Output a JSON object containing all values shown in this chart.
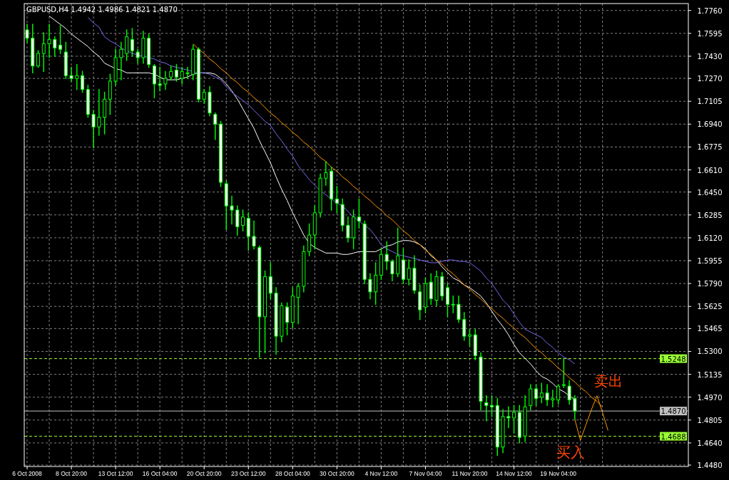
{
  "chart_data": {
    "type": "candlestick",
    "title": "GBPUSD,H4 1.4942 1.4986 1.4821 1.4870",
    "color": "#00ff00",
    "grid": true,
    "categories": [
      "6 Oct 2008",
      null,
      null,
      null,
      null,
      null,
      null,
      null,
      "8 Oct 20:00",
      null,
      null,
      null,
      null,
      null,
      null,
      null,
      "13 Oct 12:00",
      null,
      null,
      null,
      null,
      null,
      null,
      null,
      "16 Oct 04:00",
      null,
      null,
      null,
      null,
      null,
      null,
      null,
      "20 Oct 20:00",
      null,
      null,
      null,
      null,
      null,
      null,
      null,
      "23 Oct 12:00",
      null,
      null,
      null,
      null,
      null,
      null,
      null,
      "28 Oct 04:00",
      null,
      null,
      null,
      null,
      null,
      null,
      null,
      "30 Oct 20:00",
      null,
      null,
      null,
      null,
      null,
      null,
      null,
      "4 Nov 12:00",
      null,
      null,
      null,
      null,
      null,
      null,
      null,
      "7 Nov 04:00",
      null,
      null,
      null,
      null,
      null,
      null,
      null,
      "11 Nov 20:00",
      null,
      null,
      null,
      null,
      null,
      null,
      null,
      "14 Nov 12:00",
      null,
      null,
      null,
      null,
      null,
      null,
      null,
      "19 Nov 04:00",
      null,
      null,
      null,
      null,
      null,
      null,
      null,
      null,
      null
    ],
    "ohlc": [
      [
        1.762,
        1.766,
        1.753,
        1.756
      ],
      [
        1.756,
        1.766,
        1.731,
        1.736
      ],
      [
        1.736,
        1.747,
        1.735,
        1.745
      ],
      [
        1.745,
        1.76,
        1.732,
        1.752
      ],
      [
        1.752,
        1.766,
        1.742,
        1.755
      ],
      [
        1.755,
        1.757,
        1.743,
        1.749
      ],
      [
        1.751,
        1.765,
        1.745,
        1.748
      ],
      [
        1.746,
        1.753,
        1.727,
        1.729
      ],
      [
        1.729,
        1.735,
        1.725,
        1.727
      ],
      [
        1.727,
        1.737,
        1.719,
        1.729
      ],
      [
        1.729,
        1.732,
        1.717,
        1.719
      ],
      [
        1.719,
        1.722,
        1.699,
        1.701
      ],
      [
        1.701,
        1.704,
        1.677,
        1.692
      ],
      [
        1.692,
        1.719,
        1.686,
        1.699
      ],
      [
        1.699,
        1.717,
        1.687,
        1.712
      ],
      [
        1.712,
        1.73,
        1.701,
        1.725
      ],
      [
        1.725,
        1.748,
        1.722,
        1.742
      ],
      [
        1.742,
        1.753,
        1.726,
        1.748
      ],
      [
        1.745,
        1.762,
        1.74,
        1.757
      ],
      [
        1.755,
        1.763,
        1.743,
        1.747
      ],
      [
        1.746,
        1.748,
        1.738,
        1.742
      ],
      [
        1.742,
        1.761,
        1.738,
        1.756
      ],
      [
        1.756,
        1.759,
        1.735,
        1.737
      ],
      [
        1.736,
        1.737,
        1.713,
        1.723
      ],
      [
        1.723,
        1.735,
        1.718,
        1.722
      ],
      [
        1.723,
        1.732,
        1.719,
        1.727
      ],
      [
        1.728,
        1.736,
        1.726,
        1.732
      ],
      [
        1.733,
        1.737,
        1.725,
        1.728
      ],
      [
        1.727,
        1.735,
        1.723,
        1.732
      ],
      [
        1.731,
        1.735,
        1.727,
        1.731
      ],
      [
        1.73,
        1.751,
        1.726,
        1.748
      ],
      [
        1.748,
        1.749,
        1.71,
        1.712
      ],
      [
        1.712,
        1.719,
        1.709,
        1.717
      ],
      [
        1.717,
        1.721,
        1.7,
        1.702
      ],
      [
        1.701,
        1.702,
        1.683,
        1.694
      ],
      [
        1.694,
        1.696,
        1.649,
        1.652
      ],
      [
        1.651,
        1.653,
        1.618,
        1.635
      ],
      [
        1.635,
        1.642,
        1.622,
        1.632
      ],
      [
        1.632,
        1.635,
        1.614,
        1.62
      ],
      [
        1.621,
        1.632,
        1.617,
        1.627
      ],
      [
        1.626,
        1.63,
        1.603,
        1.613
      ],
      [
        1.613,
        1.624,
        1.604,
        1.606
      ],
      [
        1.605,
        1.606,
        1.526,
        1.555
      ],
      [
        1.555,
        1.588,
        1.529,
        1.584
      ],
      [
        1.584,
        1.594,
        1.568,
        1.572
      ],
      [
        1.572,
        1.576,
        1.528,
        1.541
      ],
      [
        1.541,
        1.565,
        1.537,
        1.563
      ],
      [
        1.562,
        1.565,
        1.542,
        1.551
      ],
      [
        1.551,
        1.576,
        1.547,
        1.57
      ],
      [
        1.569,
        1.579,
        1.55,
        1.577
      ],
      [
        1.577,
        1.606,
        1.573,
        1.602
      ],
      [
        1.602,
        1.622,
        1.599,
        1.614
      ],
      [
        1.614,
        1.635,
        1.604,
        1.63
      ],
      [
        1.63,
        1.658,
        1.627,
        1.655
      ],
      [
        1.655,
        1.667,
        1.65,
        1.659
      ],
      [
        1.66,
        1.663,
        1.632,
        1.64
      ],
      [
        1.64,
        1.649,
        1.63,
        1.637
      ],
      [
        1.636,
        1.64,
        1.617,
        1.621
      ],
      [
        1.621,
        1.627,
        1.609,
        1.612
      ],
      [
        1.612,
        1.632,
        1.604,
        1.627
      ],
      [
        1.627,
        1.64,
        1.619,
        1.624
      ],
      [
        1.622,
        1.624,
        1.579,
        1.582
      ],
      [
        1.582,
        1.586,
        1.568,
        1.573
      ],
      [
        1.573,
        1.594,
        1.564,
        1.585
      ],
      [
        1.585,
        1.604,
        1.582,
        1.6
      ],
      [
        1.6,
        1.609,
        1.589,
        1.595
      ],
      [
        1.595,
        1.596,
        1.581,
        1.586
      ],
      [
        1.586,
        1.619,
        1.584,
        1.599
      ],
      [
        1.596,
        1.604,
        1.579,
        1.582
      ],
      [
        1.582,
        1.596,
        1.578,
        1.59
      ],
      [
        1.59,
        1.599,
        1.572,
        1.574
      ],
      [
        1.573,
        1.578,
        1.553,
        1.56
      ],
      [
        1.562,
        1.583,
        1.558,
        1.579
      ],
      [
        1.58,
        1.586,
        1.564,
        1.568
      ],
      [
        1.567,
        1.588,
        1.563,
        1.584
      ],
      [
        1.584,
        1.587,
        1.567,
        1.57
      ],
      [
        1.576,
        1.579,
        1.555,
        1.564
      ],
      [
        1.564,
        1.57,
        1.558,
        1.564
      ],
      [
        1.564,
        1.57,
        1.551,
        1.553
      ],
      [
        1.553,
        1.558,
        1.538,
        1.541
      ],
      [
        1.541,
        1.546,
        1.534,
        1.542
      ],
      [
        1.542,
        1.546,
        1.524,
        1.527
      ],
      [
        1.526,
        1.529,
        1.488,
        1.494
      ],
      [
        1.493,
        1.498,
        1.48,
        1.491
      ],
      [
        1.491,
        1.498,
        1.483,
        1.49
      ],
      [
        1.491,
        1.496,
        1.455,
        1.461
      ],
      [
        1.461,
        1.488,
        1.457,
        1.483
      ],
      [
        1.483,
        1.49,
        1.475,
        1.482
      ],
      [
        1.482,
        1.491,
        1.471,
        1.486
      ],
      [
        1.486,
        1.491,
        1.464,
        1.468
      ],
      [
        1.469,
        1.498,
        1.465,
        1.49
      ],
      [
        1.491,
        1.506,
        1.488,
        1.503
      ],
      [
        1.503,
        1.506,
        1.491,
        1.496
      ],
      [
        1.497,
        1.507,
        1.493,
        1.5
      ],
      [
        1.5,
        1.506,
        1.491,
        1.495
      ],
      [
        1.495,
        1.502,
        1.49,
        1.496
      ],
      [
        1.495,
        1.506,
        1.492,
        1.505
      ],
      [
        1.506,
        1.525,
        1.504,
        1.506
      ],
      [
        1.505,
        1.509,
        1.492,
        1.495
      ],
      [
        1.496,
        1.498,
        1.481,
        1.487
      ],
      null,
      null,
      null,
      null,
      null,
      null
    ],
    "series": [
      {
        "type": "line",
        "color": "#ffffff",
        "values": [
          null,
          null,
          null,
          null,
          1.772,
          1.769,
          1.766,
          1.763,
          1.759,
          1.756,
          1.753,
          1.75,
          1.746,
          1.743,
          1.738,
          1.736,
          1.734,
          1.733,
          1.731,
          1.731,
          1.731,
          1.731,
          1.731,
          1.73,
          1.728,
          1.726,
          1.726,
          1.726,
          1.727,
          1.728,
          1.73,
          1.731,
          1.731,
          1.731,
          1.73,
          1.727,
          1.723,
          1.718,
          1.712,
          1.705,
          1.698,
          1.691,
          1.682,
          1.674,
          1.666,
          1.656,
          1.647,
          1.639,
          1.63,
          1.622,
          1.614,
          1.608,
          1.605,
          1.603,
          1.601,
          1.601,
          1.601,
          1.6,
          1.6,
          1.601,
          1.602,
          1.602,
          1.602,
          1.602,
          1.604,
          1.606,
          1.607,
          1.609,
          1.61,
          1.61,
          1.609,
          1.607,
          1.604,
          1.599,
          1.596,
          1.591,
          1.587,
          1.583,
          1.581,
          1.578,
          1.576,
          1.573,
          1.57,
          1.565,
          1.559,
          1.553,
          1.548,
          1.542,
          1.535,
          1.529,
          1.525,
          1.521,
          1.516,
          1.512,
          1.51,
          1.507,
          1.503,
          1.501,
          1.498,
          1.495,
          null,
          null,
          null,
          null,
          null,
          null
        ]
      },
      {
        "type": "line",
        "color": "#7b68ee",
        "values": [
          null,
          null,
          null,
          null,
          null,
          null,
          null,
          null,
          null,
          null,
          null,
          1.771,
          1.767,
          1.764,
          1.757,
          1.754,
          1.752,
          1.749,
          1.747,
          1.745,
          1.744,
          1.743,
          1.742,
          1.741,
          1.739,
          1.738,
          1.736,
          1.735,
          1.734,
          1.733,
          1.732,
          1.731,
          1.731,
          1.73,
          1.728,
          1.726,
          1.721,
          1.717,
          1.714,
          1.711,
          1.708,
          1.704,
          1.7,
          1.696,
          1.693,
          1.687,
          1.682,
          1.676,
          1.671,
          1.664,
          1.659,
          1.654,
          1.65,
          1.646,
          1.643,
          1.64,
          1.637,
          1.635,
          1.631,
          1.627,
          1.624,
          1.621,
          1.618,
          1.613,
          1.607,
          1.604,
          1.602,
          1.6,
          1.599,
          1.598,
          1.597,
          1.596,
          1.595,
          1.594,
          1.594,
          1.595,
          1.596,
          1.596,
          1.595,
          1.595,
          1.594,
          1.591,
          1.588,
          1.583,
          1.579,
          1.573,
          1.567,
          1.563,
          1.557,
          1.551,
          1.546,
          1.544,
          1.542,
          1.54,
          1.536,
          1.533,
          1.529,
          1.526,
          1.524,
          1.521,
          null,
          null,
          null,
          null,
          null,
          null
        ]
      },
      {
        "type": "line",
        "color": "#ff9900",
        "values": [
          null,
          null,
          null,
          null,
          null,
          null,
          null,
          null,
          null,
          null,
          null,
          null,
          null,
          null,
          null,
          null,
          null,
          null,
          null,
          null,
          null,
          null,
          null,
          null,
          null,
          null,
          null,
          null,
          null,
          null,
          1.752,
          1.748,
          1.745,
          1.741,
          1.738,
          1.734,
          1.731,
          1.727,
          1.724,
          1.72,
          1.717,
          1.713,
          1.71,
          1.706,
          1.702,
          1.699,
          1.695,
          1.692,
          1.688,
          1.685,
          1.681,
          1.678,
          1.674,
          1.67,
          1.667,
          1.663,
          1.66,
          1.656,
          1.653,
          1.649,
          1.646,
          1.642,
          1.639,
          1.635,
          1.632,
          1.628,
          1.625,
          1.621,
          1.617,
          1.614,
          1.61,
          1.607,
          1.603,
          1.6,
          1.596,
          1.593,
          1.589,
          1.586,
          1.582,
          1.578,
          1.575,
          1.571,
          1.568,
          1.564,
          1.561,
          1.557,
          1.554,
          1.55,
          1.547,
          1.543,
          1.54,
          1.536,
          1.532,
          1.529,
          1.525,
          1.522,
          1.518,
          1.515,
          1.511,
          1.508,
          1.504,
          1.501,
          1.497,
          1.494,
          1.49,
          null
        ]
      },
      {
        "type": "line",
        "color": "#ff9900",
        "values": [
          null,
          null,
          null,
          null,
          null,
          null,
          null,
          null,
          null,
          null,
          null,
          null,
          null,
          null,
          null,
          null,
          null,
          null,
          null,
          null,
          null,
          null,
          null,
          null,
          null,
          null,
          null,
          null,
          null,
          null,
          null,
          null,
          null,
          null,
          null,
          null,
          null,
          null,
          null,
          null,
          null,
          null,
          null,
          null,
          null,
          null,
          null,
          null,
          null,
          null,
          null,
          null,
          null,
          null,
          null,
          null,
          null,
          null,
          null,
          null,
          null,
          null,
          null,
          null,
          null,
          null,
          null,
          null,
          null,
          null,
          null,
          null,
          null,
          null,
          null,
          null,
          null,
          null,
          null,
          null,
          null,
          null,
          null,
          null,
          null,
          null,
          null,
          null,
          null,
          null,
          null,
          null,
          null,
          null,
          null,
          null,
          null,
          null,
          null,
          1.481,
          1.466,
          1.477,
          1.488,
          1.498,
          1.486,
          1.473
        ]
      }
    ],
    "ylim": [
      1.447,
      1.781
    ],
    "yticks": [
      {
        "value": 1.448,
        "label": "1.4480"
      },
      {
        "value": 1.464,
        "label": "1.4640"
      },
      {
        "value": 1.4805,
        "label": "1.4805"
      },
      {
        "value": 1.497,
        "label": "1.4970"
      },
      {
        "value": 1.5135,
        "label": "1.5135"
      },
      {
        "value": 1.53,
        "label": "1.5300"
      },
      {
        "value": 1.5465,
        "label": "1.5465"
      },
      {
        "value": 1.5625,
        "label": "1.5625"
      },
      {
        "value": 1.579,
        "label": "1.5790"
      },
      {
        "value": 1.5955,
        "label": "1.5955"
      },
      {
        "value": 1.612,
        "label": "1.6120"
      },
      {
        "value": 1.6285,
        "label": "1.6285"
      },
      {
        "value": 1.645,
        "label": "1.6450"
      },
      {
        "value": 1.661,
        "label": "1.6610"
      },
      {
        "value": 1.6775,
        "label": "1.6775"
      },
      {
        "value": 1.694,
        "label": "1.6940"
      },
      {
        "value": 1.7105,
        "label": "1.7105"
      },
      {
        "value": 1.727,
        "label": "1.7270"
      },
      {
        "value": 1.743,
        "label": "1.7430"
      },
      {
        "value": 1.7595,
        "label": "1.7595"
      },
      {
        "value": 1.776,
        "label": "1.7760"
      }
    ],
    "ref_lines": [
      {
        "axis": "y",
        "value": 1.5248,
        "label": "1.5248",
        "color": "#99ff33",
        "line_style": "dashed"
      },
      {
        "axis": "y",
        "value": 1.487,
        "label": "1.4870",
        "color": "#c0c0c0",
        "line_style": "solid"
      },
      {
        "axis": "y",
        "value": 1.4688,
        "label": "1.4688",
        "color": "#99ff33",
        "line_style": "dashed"
      }
    ],
    "annotations": [
      "卖出",
      "买入"
    ]
  }
}
